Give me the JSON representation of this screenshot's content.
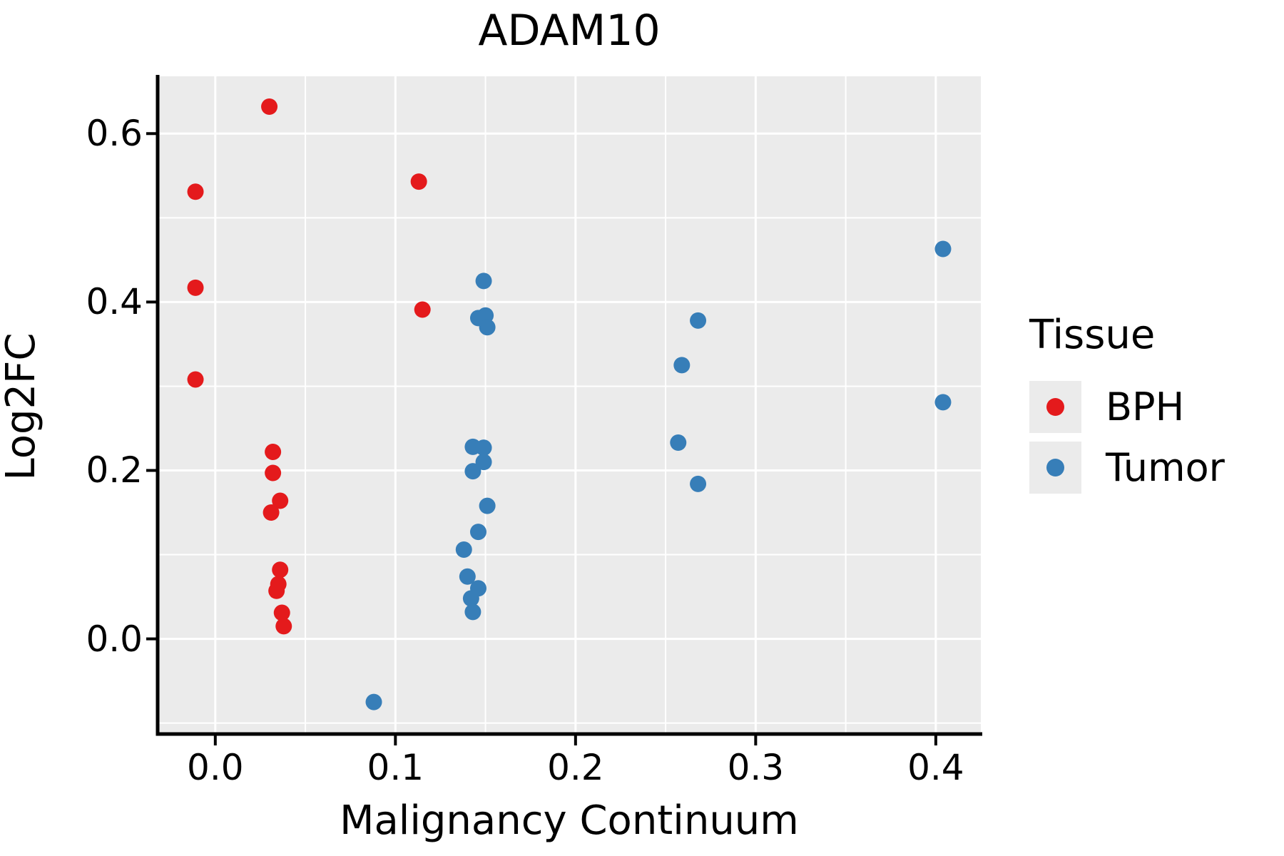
{
  "title": "ADAM10",
  "axes": {
    "x": {
      "label": "Malignancy Continuum",
      "tick_labels": [
        "0.0",
        "0.1",
        "0.2",
        "0.3",
        "0.4"
      ]
    },
    "y": {
      "label": "Log2FC",
      "tick_labels": [
        "0.0",
        "0.2",
        "0.4",
        "0.6"
      ]
    }
  },
  "legend": {
    "title": "Tissue",
    "entries": [
      {
        "label": "BPH",
        "color": "#E41A1C"
      },
      {
        "label": "Tumor",
        "color": "#377EB8"
      }
    ]
  },
  "colors": {
    "panel_bg": "#EBEBEB",
    "grid": "#FFFFFF",
    "axis_line": "#000000",
    "text": "#000000",
    "bph": "#E41A1C",
    "tumor": "#377EB8"
  },
  "chart_data": {
    "type": "scatter",
    "title": "ADAM10",
    "xlabel": "Malignancy Continuum",
    "ylabel": "Log2FC",
    "xlim": [
      -0.032,
      0.425
    ],
    "ylim": [
      -0.113,
      0.668
    ],
    "x_ticks": [
      0.0,
      0.1,
      0.2,
      0.3,
      0.4
    ],
    "y_ticks": [
      0.0,
      0.2,
      0.4,
      0.6
    ],
    "x_minor_step": 0.05,
    "y_minor_step": 0.1,
    "grid": true,
    "legend_position": "right",
    "point_radius_px": 11.5,
    "series": [
      {
        "name": "BPH",
        "color": "#E41A1C",
        "points": [
          [
            -0.011,
            0.531
          ],
          [
            -0.011,
            0.417
          ],
          [
            -0.011,
            0.308
          ],
          [
            0.03,
            0.632
          ],
          [
            0.032,
            0.222
          ],
          [
            0.032,
            0.197
          ],
          [
            0.036,
            0.164
          ],
          [
            0.031,
            0.15
          ],
          [
            0.036,
            0.082
          ],
          [
            0.035,
            0.065
          ],
          [
            0.034,
            0.057
          ],
          [
            0.037,
            0.031
          ],
          [
            0.038,
            0.015
          ],
          [
            0.113,
            0.543
          ],
          [
            0.115,
            0.391
          ]
        ]
      },
      {
        "name": "Tumor",
        "color": "#377EB8",
        "points": [
          [
            0.088,
            -0.075
          ],
          [
            0.149,
            0.425
          ],
          [
            0.146,
            0.381
          ],
          [
            0.15,
            0.384
          ],
          [
            0.151,
            0.37
          ],
          [
            0.143,
            0.228
          ],
          [
            0.149,
            0.227
          ],
          [
            0.149,
            0.21
          ],
          [
            0.143,
            0.199
          ],
          [
            0.151,
            0.158
          ],
          [
            0.146,
            0.127
          ],
          [
            0.138,
            0.106
          ],
          [
            0.14,
            0.074
          ],
          [
            0.146,
            0.06
          ],
          [
            0.142,
            0.048
          ],
          [
            0.143,
            0.032
          ],
          [
            0.268,
            0.378
          ],
          [
            0.259,
            0.325
          ],
          [
            0.257,
            0.233
          ],
          [
            0.268,
            0.184
          ],
          [
            0.404,
            0.463
          ],
          [
            0.404,
            0.281
          ]
        ]
      }
    ]
  }
}
